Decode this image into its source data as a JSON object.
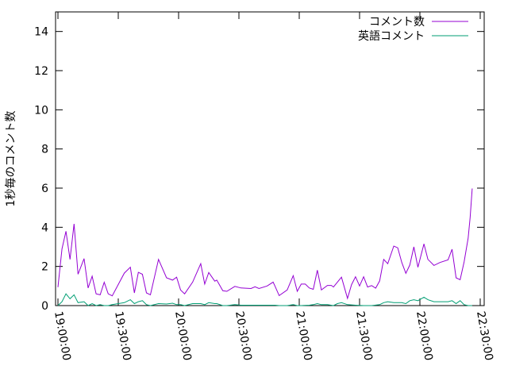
{
  "chart_data": {
    "type": "line",
    "title": "",
    "xlabel": "",
    "ylabel": "1秒毎のコメント数",
    "xlim": [
      "19:00:00",
      "22:30:00"
    ],
    "ylim": [
      0,
      15
    ],
    "xticks": [
      "19:00:00",
      "19:30:00",
      "20:00:00",
      "20:30:00",
      "21:00:00",
      "21:30:00",
      "22:00:00",
      "22:30:00"
    ],
    "yticks": [
      "0",
      "2",
      "4",
      "6",
      "8",
      "10",
      "12",
      "14"
    ],
    "grid": false,
    "legend_position": "top-right",
    "series": [
      {
        "name": "コメント数",
        "color": "#9400d3",
        "points": [
          [
            "19:00:00",
            0.94
          ],
          [
            "19:02:00",
            2.9
          ],
          [
            "19:04:00",
            3.8
          ],
          [
            "19:06:00",
            2.36
          ],
          [
            "19:08:00",
            4.17
          ],
          [
            "19:10:00",
            1.6
          ],
          [
            "19:13:00",
            2.4
          ],
          [
            "19:15:00",
            0.9
          ],
          [
            "19:17:00",
            1.5
          ],
          [
            "19:19:00",
            0.6
          ],
          [
            "19:21:00",
            0.55
          ],
          [
            "19:23:00",
            1.19
          ],
          [
            "19:25:00",
            0.6
          ],
          [
            "19:27:00",
            0.5
          ],
          [
            "19:33:00",
            1.66
          ],
          [
            "19:36:00",
            1.96
          ],
          [
            "19:38:00",
            0.65
          ],
          [
            "19:40:00",
            1.7
          ],
          [
            "19:42:00",
            1.6
          ],
          [
            "19:44:00",
            0.65
          ],
          [
            "19:46:00",
            0.55
          ],
          [
            "19:50:00",
            2.36
          ],
          [
            "19:54:00",
            1.42
          ],
          [
            "19:57:00",
            1.3
          ],
          [
            "19:59:00",
            1.45
          ],
          [
            "20:01:00",
            0.8
          ],
          [
            "20:03:00",
            0.6
          ],
          [
            "20:07:00",
            1.2
          ],
          [
            "20:11:00",
            2.14
          ],
          [
            "20:13:00",
            1.1
          ],
          [
            "20:15:00",
            1.69
          ],
          [
            "20:18:00",
            1.25
          ],
          [
            "20:19:00",
            1.3
          ],
          [
            "20:22:00",
            0.76
          ],
          [
            "20:24:00",
            0.73
          ],
          [
            "20:28:00",
            0.98
          ],
          [
            "20:31:00",
            0.9
          ],
          [
            "20:36:00",
            0.87
          ],
          [
            "20:38:00",
            0.96
          ],
          [
            "20:40:00",
            0.87
          ],
          [
            "20:44:00",
            1.0
          ],
          [
            "20:47:00",
            1.2
          ],
          [
            "20:48:00",
            0.98
          ],
          [
            "20:50:00",
            0.51
          ],
          [
            "20:54:00",
            0.8
          ],
          [
            "20:57:00",
            1.53
          ],
          [
            "20:59:00",
            0.73
          ],
          [
            "21:01:00",
            1.1
          ],
          [
            "21:03:00",
            1.1
          ],
          [
            "21:05:00",
            0.9
          ],
          [
            "21:07:00",
            0.83
          ],
          [
            "21:09:00",
            1.81
          ],
          [
            "21:11:00",
            0.8
          ],
          [
            "21:14:00",
            1.03
          ],
          [
            "21:16:00",
            1.03
          ],
          [
            "21:17:00",
            0.95
          ],
          [
            "21:19:00",
            1.2
          ],
          [
            "21:21:00",
            1.45
          ],
          [
            "21:24:00",
            0.37
          ],
          [
            "21:26:00",
            1.07
          ],
          [
            "21:28:00",
            1.47
          ],
          [
            "21:30:00",
            1.0
          ],
          [
            "21:32:00",
            1.47
          ],
          [
            "21:34:00",
            0.95
          ],
          [
            "21:36:00",
            1.02
          ],
          [
            "21:38:00",
            0.89
          ],
          [
            "21:40:00",
            1.26
          ],
          [
            "21:42:00",
            2.36
          ],
          [
            "21:44:00",
            2.14
          ],
          [
            "21:47:00",
            3.04
          ],
          [
            "21:49:00",
            2.95
          ],
          [
            "21:51:00",
            2.2
          ],
          [
            "21:53:00",
            1.65
          ],
          [
            "21:55:00",
            2.07
          ],
          [
            "21:57:00",
            3.0
          ],
          [
            "21:59:00",
            1.96
          ],
          [
            "22:02:00",
            3.15
          ],
          [
            "22:04:00",
            2.36
          ],
          [
            "22:05:00",
            2.26
          ],
          [
            "22:07:00",
            2.05
          ],
          [
            "22:10:00",
            2.2
          ],
          [
            "22:14:00",
            2.34
          ],
          [
            "22:16:00",
            2.88
          ],
          [
            "22:18:00",
            1.42
          ],
          [
            "22:20:00",
            1.32
          ],
          [
            "22:22:00",
            2.23
          ],
          [
            "22:24:00",
            3.45
          ],
          [
            "22:25:00",
            4.5
          ],
          [
            "22:26:00",
            5.98
          ]
        ]
      },
      {
        "name": "英語コメント",
        "color": "#009e73",
        "points": [
          [
            "19:00:00",
            0
          ],
          [
            "19:02:00",
            0.2
          ],
          [
            "19:04:00",
            0.6
          ],
          [
            "19:06:00",
            0.35
          ],
          [
            "19:08:00",
            0.55
          ],
          [
            "19:10:00",
            0.15
          ],
          [
            "19:13:00",
            0.2
          ],
          [
            "19:15:00",
            0
          ],
          [
            "19:17:00",
            0.1
          ],
          [
            "19:19:00",
            0
          ],
          [
            "19:21:00",
            0.05
          ],
          [
            "19:23:00",
            0
          ],
          [
            "19:25:00",
            0
          ],
          [
            "19:27:00",
            0.05
          ],
          [
            "19:33:00",
            0.15
          ],
          [
            "19:36:00",
            0.3
          ],
          [
            "19:38:00",
            0.1
          ],
          [
            "19:40:00",
            0.2
          ],
          [
            "19:42:00",
            0.25
          ],
          [
            "19:44:00",
            0.05
          ],
          [
            "19:46:00",
            0
          ],
          [
            "19:50:00",
            0.1
          ],
          [
            "19:54:00",
            0.08
          ],
          [
            "19:57:00",
            0.12
          ],
          [
            "19:59:00",
            0.05
          ],
          [
            "20:01:00",
            0.05
          ],
          [
            "20:03:00",
            0
          ],
          [
            "20:07:00",
            0.1
          ],
          [
            "20:11:00",
            0.1
          ],
          [
            "20:13:00",
            0.05
          ],
          [
            "20:15:00",
            0.15
          ],
          [
            "20:18:00",
            0.1
          ],
          [
            "20:19:00",
            0.1
          ],
          [
            "20:22:00",
            0
          ],
          [
            "20:24:00",
            0
          ],
          [
            "20:28:00",
            0.05
          ],
          [
            "20:31:00",
            0.02
          ],
          [
            "20:36:00",
            0.02
          ],
          [
            "20:40:00",
            0.02
          ],
          [
            "20:44:00",
            0.02
          ],
          [
            "20:48:00",
            0.02
          ],
          [
            "20:50:00",
            0
          ],
          [
            "20:54:00",
            0
          ],
          [
            "20:57:00",
            0.05
          ],
          [
            "20:59:00",
            0
          ],
          [
            "21:01:00",
            0
          ],
          [
            "21:05:00",
            0.02
          ],
          [
            "21:07:00",
            0.05
          ],
          [
            "21:09:00",
            0.1
          ],
          [
            "21:11:00",
            0.05
          ],
          [
            "21:14:00",
            0.05
          ],
          [
            "21:17:00",
            0
          ],
          [
            "21:19:00",
            0.1
          ],
          [
            "21:21:00",
            0.15
          ],
          [
            "21:24:00",
            0.05
          ],
          [
            "21:28:00",
            0.02
          ],
          [
            "21:32:00",
            0
          ],
          [
            "21:36:00",
            0
          ],
          [
            "21:40:00",
            0.05
          ],
          [
            "21:42:00",
            0.15
          ],
          [
            "21:44:00",
            0.2
          ],
          [
            "21:47:00",
            0.15
          ],
          [
            "21:51:00",
            0.15
          ],
          [
            "21:53:00",
            0.1
          ],
          [
            "21:55:00",
            0.25
          ],
          [
            "21:57:00",
            0.3
          ],
          [
            "21:59:00",
            0.25
          ],
          [
            "22:02:00",
            0.43
          ],
          [
            "22:04:00",
            0.3
          ],
          [
            "22:07:00",
            0.2
          ],
          [
            "22:10:00",
            0.2
          ],
          [
            "22:14:00",
            0.2
          ],
          [
            "22:16:00",
            0.25
          ],
          [
            "22:18:00",
            0.1
          ],
          [
            "22:20:00",
            0.25
          ],
          [
            "22:22:00",
            0.05
          ],
          [
            "22:24:00",
            0
          ],
          [
            "22:26:00",
            0
          ]
        ]
      }
    ]
  }
}
